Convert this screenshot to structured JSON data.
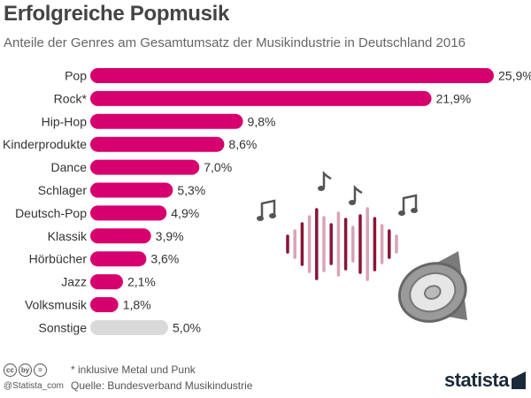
{
  "header": {
    "title": "Erfolgreiche Popmusik",
    "subtitle": "Anteile der Genres am Gesamtumsatz der Musikindustrie in Deutschland 2016"
  },
  "chart_data": {
    "type": "bar",
    "orientation": "horizontal",
    "categories": [
      "Pop",
      "Rock*",
      "Hip-Hop",
      "Kinderprodukte",
      "Dance",
      "Schlager",
      "Deutsch-Pop",
      "Klassik",
      "Hörbücher",
      "Jazz",
      "Volksmusik",
      "Sonstige"
    ],
    "values": [
      25.9,
      21.9,
      9.8,
      8.6,
      7.0,
      5.3,
      4.9,
      3.9,
      3.6,
      2.1,
      1.8,
      5.0
    ],
    "value_labels": [
      "25,9%",
      "21,9%",
      "9,8%",
      "8,6%",
      "7,0%",
      "5,3%",
      "4,9%",
      "3,9%",
      "3,6%",
      "2,1%",
      "1,8%",
      "5,0%"
    ],
    "unit": "%",
    "xlim": [
      0,
      25.9
    ],
    "grid": false,
    "colors": {
      "primary": "#d6006e",
      "other": "#d9d9d9"
    }
  },
  "illustration": {
    "icons": [
      "music-note-icon",
      "music-note-icon",
      "music-note-icon",
      "music-note-icon",
      "speaker-icon"
    ],
    "wave_colors": [
      "#8a1538",
      "#d9a3b7"
    ]
  },
  "footer": {
    "cc_icons": [
      "cc",
      "by",
      "="
    ],
    "handle": "@Statista_com",
    "note": "* inklusive Metal und Punk",
    "source": "Quelle: Bundesverband Musikindustrie",
    "brand": "statista"
  }
}
